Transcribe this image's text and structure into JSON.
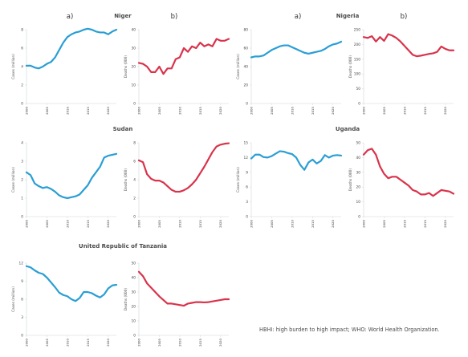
{
  "colors": {
    "cases": "#2a9ed4",
    "deaths": "#d9334b",
    "axis": "#cfd6da"
  },
  "panel_letters": {
    "a": "a)",
    "b": "b)"
  },
  "footnote": "HBHI: high burden to high impact; WHO: World Health Organization.",
  "chart_data": [
    {
      "type": "line",
      "country": "Niger",
      "panel": "a)",
      "title": "Niger",
      "ylabel": "Cases (million)",
      "ylim": [
        0,
        8
      ],
      "yticks": [
        0,
        2,
        4,
        6,
        8
      ],
      "xticks": [
        2000,
        2005,
        2010,
        2015,
        2020
      ],
      "series": [
        {
          "color": "cases",
          "x": [
            2000,
            2001,
            2002,
            2003,
            2004,
            2005,
            2006,
            2007,
            2008,
            2009,
            2010,
            2011,
            2012,
            2013,
            2014,
            2015,
            2016,
            2017,
            2018,
            2019,
            2020,
            2021,
            2022
          ],
          "values": [
            4.1,
            4.1,
            3.9,
            3.8,
            4.0,
            4.3,
            4.5,
            5.0,
            5.8,
            6.6,
            7.2,
            7.5,
            7.7,
            7.8,
            8.0,
            8.1,
            8.0,
            7.8,
            7.7,
            7.7,
            7.5,
            7.8,
            8.0
          ]
        }
      ]
    },
    {
      "type": "line",
      "country": "Niger",
      "panel": "b)",
      "title": "",
      "ylabel": "Deaths (000)",
      "ylim": [
        0,
        40
      ],
      "yticks": [
        0,
        10,
        20,
        30,
        40
      ],
      "xticks": [
        2000,
        2005,
        2010,
        2015,
        2020
      ],
      "series": [
        {
          "color": "deaths",
          "x": [
            2000,
            2001,
            2002,
            2003,
            2004,
            2005,
            2006,
            2007,
            2008,
            2009,
            2010,
            2011,
            2012,
            2013,
            2014,
            2015,
            2016,
            2017,
            2018,
            2019,
            2020,
            2021,
            2022
          ],
          "values": [
            22,
            21.5,
            20,
            17,
            17,
            20,
            16,
            19,
            19,
            24,
            25,
            30,
            28,
            31,
            30,
            33,
            31,
            32,
            31,
            35,
            34,
            34,
            35
          ]
        }
      ]
    },
    {
      "type": "line",
      "country": "Nigeria",
      "panel": "a)",
      "title": "Nigeria",
      "ylabel": "Cases (million)",
      "ylim": [
        0,
        80
      ],
      "yticks": [
        0,
        20,
        40,
        60,
        80
      ],
      "xticks": [
        2000,
        2005,
        2010,
        2015,
        2020
      ],
      "series": [
        {
          "color": "cases",
          "x": [
            2000,
            2001,
            2002,
            2003,
            2004,
            2005,
            2006,
            2007,
            2008,
            2009,
            2010,
            2011,
            2012,
            2013,
            2014,
            2015,
            2016,
            2017,
            2018,
            2019,
            2020,
            2021,
            2022
          ],
          "values": [
            50,
            51,
            51,
            52,
            55,
            58,
            60,
            62,
            63,
            63,
            61,
            59,
            57,
            55,
            54,
            55,
            56,
            57,
            59,
            62,
            64,
            65,
            67
          ]
        }
      ]
    },
    {
      "type": "line",
      "country": "Nigeria",
      "panel": "b)",
      "title": "",
      "ylabel": "Deaths (000)",
      "ylim": [
        0,
        250
      ],
      "yticks": [
        0,
        50,
        100,
        150,
        200,
        250
      ],
      "xticks": [
        2000,
        2005,
        2010,
        2015,
        2020
      ],
      "series": [
        {
          "color": "deaths",
          "x": [
            2000,
            2001,
            2002,
            2003,
            2004,
            2005,
            2006,
            2007,
            2008,
            2009,
            2010,
            2011,
            2012,
            2013,
            2014,
            2015,
            2016,
            2017,
            2018,
            2019,
            2020,
            2021,
            2022
          ],
          "values": [
            225,
            222,
            228,
            210,
            225,
            212,
            235,
            230,
            222,
            210,
            195,
            180,
            165,
            160,
            162,
            165,
            168,
            170,
            175,
            193,
            185,
            180,
            180
          ]
        }
      ]
    },
    {
      "type": "line",
      "country": "Sudan",
      "panel": "a)",
      "title": "Sudan",
      "ylabel": "Cases (million)",
      "ylim": [
        0,
        4
      ],
      "yticks": [
        0,
        1,
        2,
        3,
        4
      ],
      "xticks": [
        2000,
        2005,
        2010,
        2015,
        2020
      ],
      "series": [
        {
          "color": "cases",
          "x": [
            2000,
            2001,
            2002,
            2003,
            2004,
            2005,
            2006,
            2007,
            2008,
            2009,
            2010,
            2011,
            2012,
            2013,
            2014,
            2015,
            2016,
            2017,
            2018,
            2019,
            2020,
            2021,
            2022
          ],
          "values": [
            2.4,
            2.25,
            1.8,
            1.65,
            1.55,
            1.6,
            1.5,
            1.35,
            1.15,
            1.05,
            1.0,
            1.05,
            1.1,
            1.2,
            1.45,
            1.7,
            2.1,
            2.4,
            2.7,
            3.2,
            3.3,
            3.35,
            3.4
          ]
        }
      ]
    },
    {
      "type": "line",
      "country": "Sudan",
      "panel": "b)",
      "title": "",
      "ylabel": "Deaths (000)",
      "ylim": [
        0,
        8
      ],
      "yticks": [
        0,
        2,
        4,
        6,
        8
      ],
      "xticks": [
        2000,
        2005,
        2010,
        2015,
        2020
      ],
      "series": [
        {
          "color": "deaths",
          "x": [
            2000,
            2001,
            2002,
            2003,
            2004,
            2005,
            2006,
            2007,
            2008,
            2009,
            2010,
            2011,
            2012,
            2013,
            2014,
            2015,
            2016,
            2017,
            2018,
            2019,
            2020,
            2021,
            2022
          ],
          "values": [
            6.1,
            5.9,
            4.6,
            4.1,
            3.9,
            3.9,
            3.7,
            3.3,
            2.9,
            2.7,
            2.7,
            2.85,
            3.1,
            3.5,
            4.0,
            4.7,
            5.4,
            6.2,
            7.0,
            7.6,
            7.8,
            7.9,
            7.95
          ]
        }
      ]
    },
    {
      "type": "line",
      "country": "Uganda",
      "panel": "a)",
      "title": "Uganda",
      "ylabel": "Cases (million)",
      "ylim": [
        0,
        15
      ],
      "yticks": [
        0,
        3,
        6,
        9,
        12,
        15
      ],
      "xticks": [
        2000,
        2005,
        2010,
        2015,
        2020
      ],
      "series": [
        {
          "color": "cases",
          "x": [
            2000,
            2001,
            2002,
            2003,
            2004,
            2005,
            2006,
            2007,
            2008,
            2009,
            2010,
            2011,
            2012,
            2013,
            2014,
            2015,
            2016,
            2017,
            2018,
            2019,
            2020,
            2021,
            2022
          ],
          "values": [
            11.8,
            12.6,
            12.6,
            12.1,
            12.0,
            12.3,
            12.8,
            13.3,
            13.2,
            12.9,
            12.7,
            12.0,
            10.5,
            9.5,
            11.0,
            11.6,
            10.8,
            11.3,
            12.5,
            12.0,
            12.4,
            12.5,
            12.4
          ]
        }
      ]
    },
    {
      "type": "line",
      "country": "Uganda",
      "panel": "b)",
      "title": "",
      "ylabel": "Deaths (000)",
      "ylim": [
        0,
        50
      ],
      "yticks": [
        0,
        10,
        20,
        30,
        40,
        50
      ],
      "xticks": [
        2000,
        2005,
        2010,
        2015,
        2020
      ],
      "series": [
        {
          "color": "deaths",
          "x": [
            2000,
            2001,
            2002,
            2003,
            2004,
            2005,
            2006,
            2007,
            2008,
            2009,
            2010,
            2011,
            2012,
            2013,
            2014,
            2015,
            2016,
            2017,
            2018,
            2019,
            2020,
            2021,
            2022
          ],
          "values": [
            42,
            45,
            46,
            42,
            34,
            29,
            26,
            27,
            27,
            25,
            23,
            21,
            18,
            17,
            15,
            15,
            16,
            14,
            16,
            18,
            17.5,
            17,
            15.5
          ]
        }
      ]
    },
    {
      "type": "line",
      "country": "United Republic of Tanzania",
      "panel": "a)",
      "title": "United Republic of Tanzania",
      "ylabel": "Cases (million)",
      "ylim": [
        0,
        12
      ],
      "yticks": [
        0,
        3,
        6,
        9,
        12
      ],
      "xticks": [
        2000,
        2005,
        2010,
        2015,
        2020
      ],
      "series": [
        {
          "color": "cases",
          "x": [
            2000,
            2001,
            2002,
            2003,
            2004,
            2005,
            2006,
            2007,
            2008,
            2009,
            2010,
            2011,
            2012,
            2013,
            2014,
            2015,
            2016,
            2017,
            2018,
            2019,
            2020,
            2021,
            2022
          ],
          "values": [
            11.5,
            11.3,
            10.8,
            10.4,
            10.2,
            9.6,
            8.8,
            8.0,
            7.1,
            6.7,
            6.5,
            6.0,
            5.7,
            6.2,
            7.2,
            7.2,
            7.0,
            6.6,
            6.3,
            6.8,
            7.8,
            8.3,
            8.4
          ]
        }
      ]
    },
    {
      "type": "line",
      "country": "United Republic of Tanzania",
      "panel": "b)",
      "title": "",
      "ylabel": "Deaths (000)",
      "ylim": [
        0,
        50
      ],
      "yticks": [
        0,
        10,
        20,
        30,
        40,
        50
      ],
      "xticks": [
        2000,
        2005,
        2010,
        2015,
        2020
      ],
      "series": [
        {
          "color": "deaths",
          "x": [
            2000,
            2001,
            2002,
            2003,
            2004,
            2005,
            2006,
            2007,
            2008,
            2009,
            2010,
            2011,
            2012,
            2013,
            2014,
            2015,
            2016,
            2017,
            2018,
            2019,
            2020,
            2021,
            2022
          ],
          "values": [
            44,
            41,
            36,
            33,
            30,
            27,
            24.5,
            22,
            22,
            21.5,
            21,
            20.5,
            22,
            22.5,
            23,
            23,
            22.8,
            23,
            23.5,
            24,
            24.5,
            25,
            25
          ]
        }
      ]
    }
  ]
}
